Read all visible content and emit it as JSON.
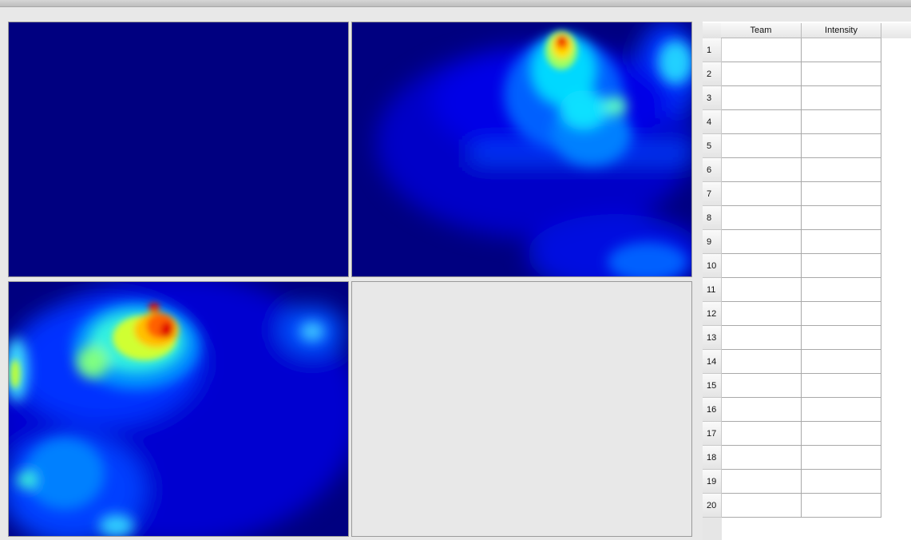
{
  "panels": [
    {
      "name": "heatmap-top-left",
      "state": "empty (solid dark blue)"
    },
    {
      "name": "heatmap-top-right",
      "state": "heatmap"
    },
    {
      "name": "heatmap-bottom-left",
      "state": "heatmap"
    },
    {
      "name": "heatmap-bottom-right",
      "state": "blank"
    }
  ],
  "colors": {
    "background": "#e8e8e8",
    "heatmap_low": "#000080",
    "heatmap_scale": [
      "#000080",
      "#0000ff",
      "#0080ff",
      "#00ffff",
      "#80ff80",
      "#ffff00",
      "#ff8000",
      "#ff0000"
    ]
  },
  "table": {
    "columns": [
      "Team",
      "Intensity"
    ],
    "rows": [
      {
        "num": "1",
        "team": "",
        "intensity": ""
      },
      {
        "num": "2",
        "team": "",
        "intensity": ""
      },
      {
        "num": "3",
        "team": "",
        "intensity": ""
      },
      {
        "num": "4",
        "team": "",
        "intensity": ""
      },
      {
        "num": "5",
        "team": "",
        "intensity": ""
      },
      {
        "num": "6",
        "team": "",
        "intensity": ""
      },
      {
        "num": "7",
        "team": "",
        "intensity": ""
      },
      {
        "num": "8",
        "team": "",
        "intensity": ""
      },
      {
        "num": "9",
        "team": "",
        "intensity": ""
      },
      {
        "num": "10",
        "team": "",
        "intensity": ""
      },
      {
        "num": "11",
        "team": "",
        "intensity": ""
      },
      {
        "num": "12",
        "team": "",
        "intensity": ""
      },
      {
        "num": "13",
        "team": "",
        "intensity": ""
      },
      {
        "num": "14",
        "team": "",
        "intensity": ""
      },
      {
        "num": "15",
        "team": "",
        "intensity": ""
      },
      {
        "num": "16",
        "team": "",
        "intensity": ""
      },
      {
        "num": "17",
        "team": "",
        "intensity": ""
      },
      {
        "num": "18",
        "team": "",
        "intensity": ""
      },
      {
        "num": "19",
        "team": "",
        "intensity": ""
      },
      {
        "num": "20",
        "team": "",
        "intensity": ""
      }
    ]
  }
}
